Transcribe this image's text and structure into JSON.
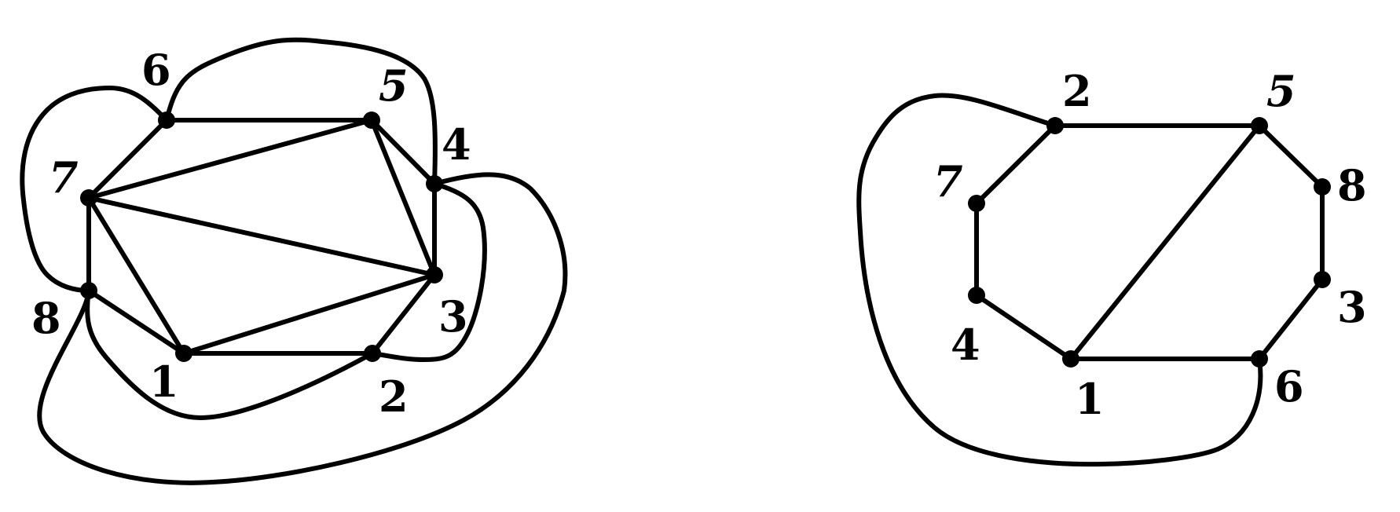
{
  "figure": {
    "description_free": true,
    "graphs": [
      {
        "id": "left-graph",
        "vertices": [
          {
            "id": "1",
            "label": "1"
          },
          {
            "id": "2",
            "label": "2"
          },
          {
            "id": "3",
            "label": "3"
          },
          {
            "id": "4",
            "label": "4"
          },
          {
            "id": "5",
            "label": "5"
          },
          {
            "id": "6",
            "label": "6"
          },
          {
            "id": "7",
            "label": "7"
          },
          {
            "id": "8",
            "label": "8"
          }
        ],
        "edges": [
          [
            "6",
            "5"
          ],
          [
            "6",
            "7"
          ],
          [
            "5",
            "7"
          ],
          [
            "5",
            "4"
          ],
          [
            "5",
            "3"
          ],
          [
            "4",
            "3"
          ],
          [
            "7",
            "3"
          ],
          [
            "7",
            "8"
          ],
          [
            "7",
            "1"
          ],
          [
            "8",
            "1"
          ],
          [
            "1",
            "3"
          ],
          [
            "1",
            "2"
          ],
          [
            "2",
            "3"
          ],
          [
            "6",
            "4"
          ],
          [
            "7",
            "6"
          ],
          [
            "7",
            "8"
          ],
          [
            "4",
            "2"
          ],
          [
            "4",
            "8"
          ],
          [
            "8",
            "2"
          ]
        ]
      },
      {
        "id": "right-graph",
        "vertices": [
          {
            "id": "1",
            "label": "1"
          },
          {
            "id": "2",
            "label": "2"
          },
          {
            "id": "3",
            "label": "3"
          },
          {
            "id": "4",
            "label": "4"
          },
          {
            "id": "5",
            "label": "5"
          },
          {
            "id": "6",
            "label": "6"
          },
          {
            "id": "7",
            "label": "7"
          },
          {
            "id": "8",
            "label": "8"
          }
        ],
        "edges": [
          [
            "2",
            "5"
          ],
          [
            "2",
            "7"
          ],
          [
            "7",
            "4"
          ],
          [
            "4",
            "1"
          ],
          [
            "1",
            "5"
          ],
          [
            "1",
            "6"
          ],
          [
            "5",
            "8"
          ],
          [
            "8",
            "3"
          ],
          [
            "3",
            "6"
          ],
          [
            "2",
            "6"
          ]
        ]
      }
    ]
  },
  "colors": {
    "stroke": "#000000",
    "background": "#ffffff"
  }
}
